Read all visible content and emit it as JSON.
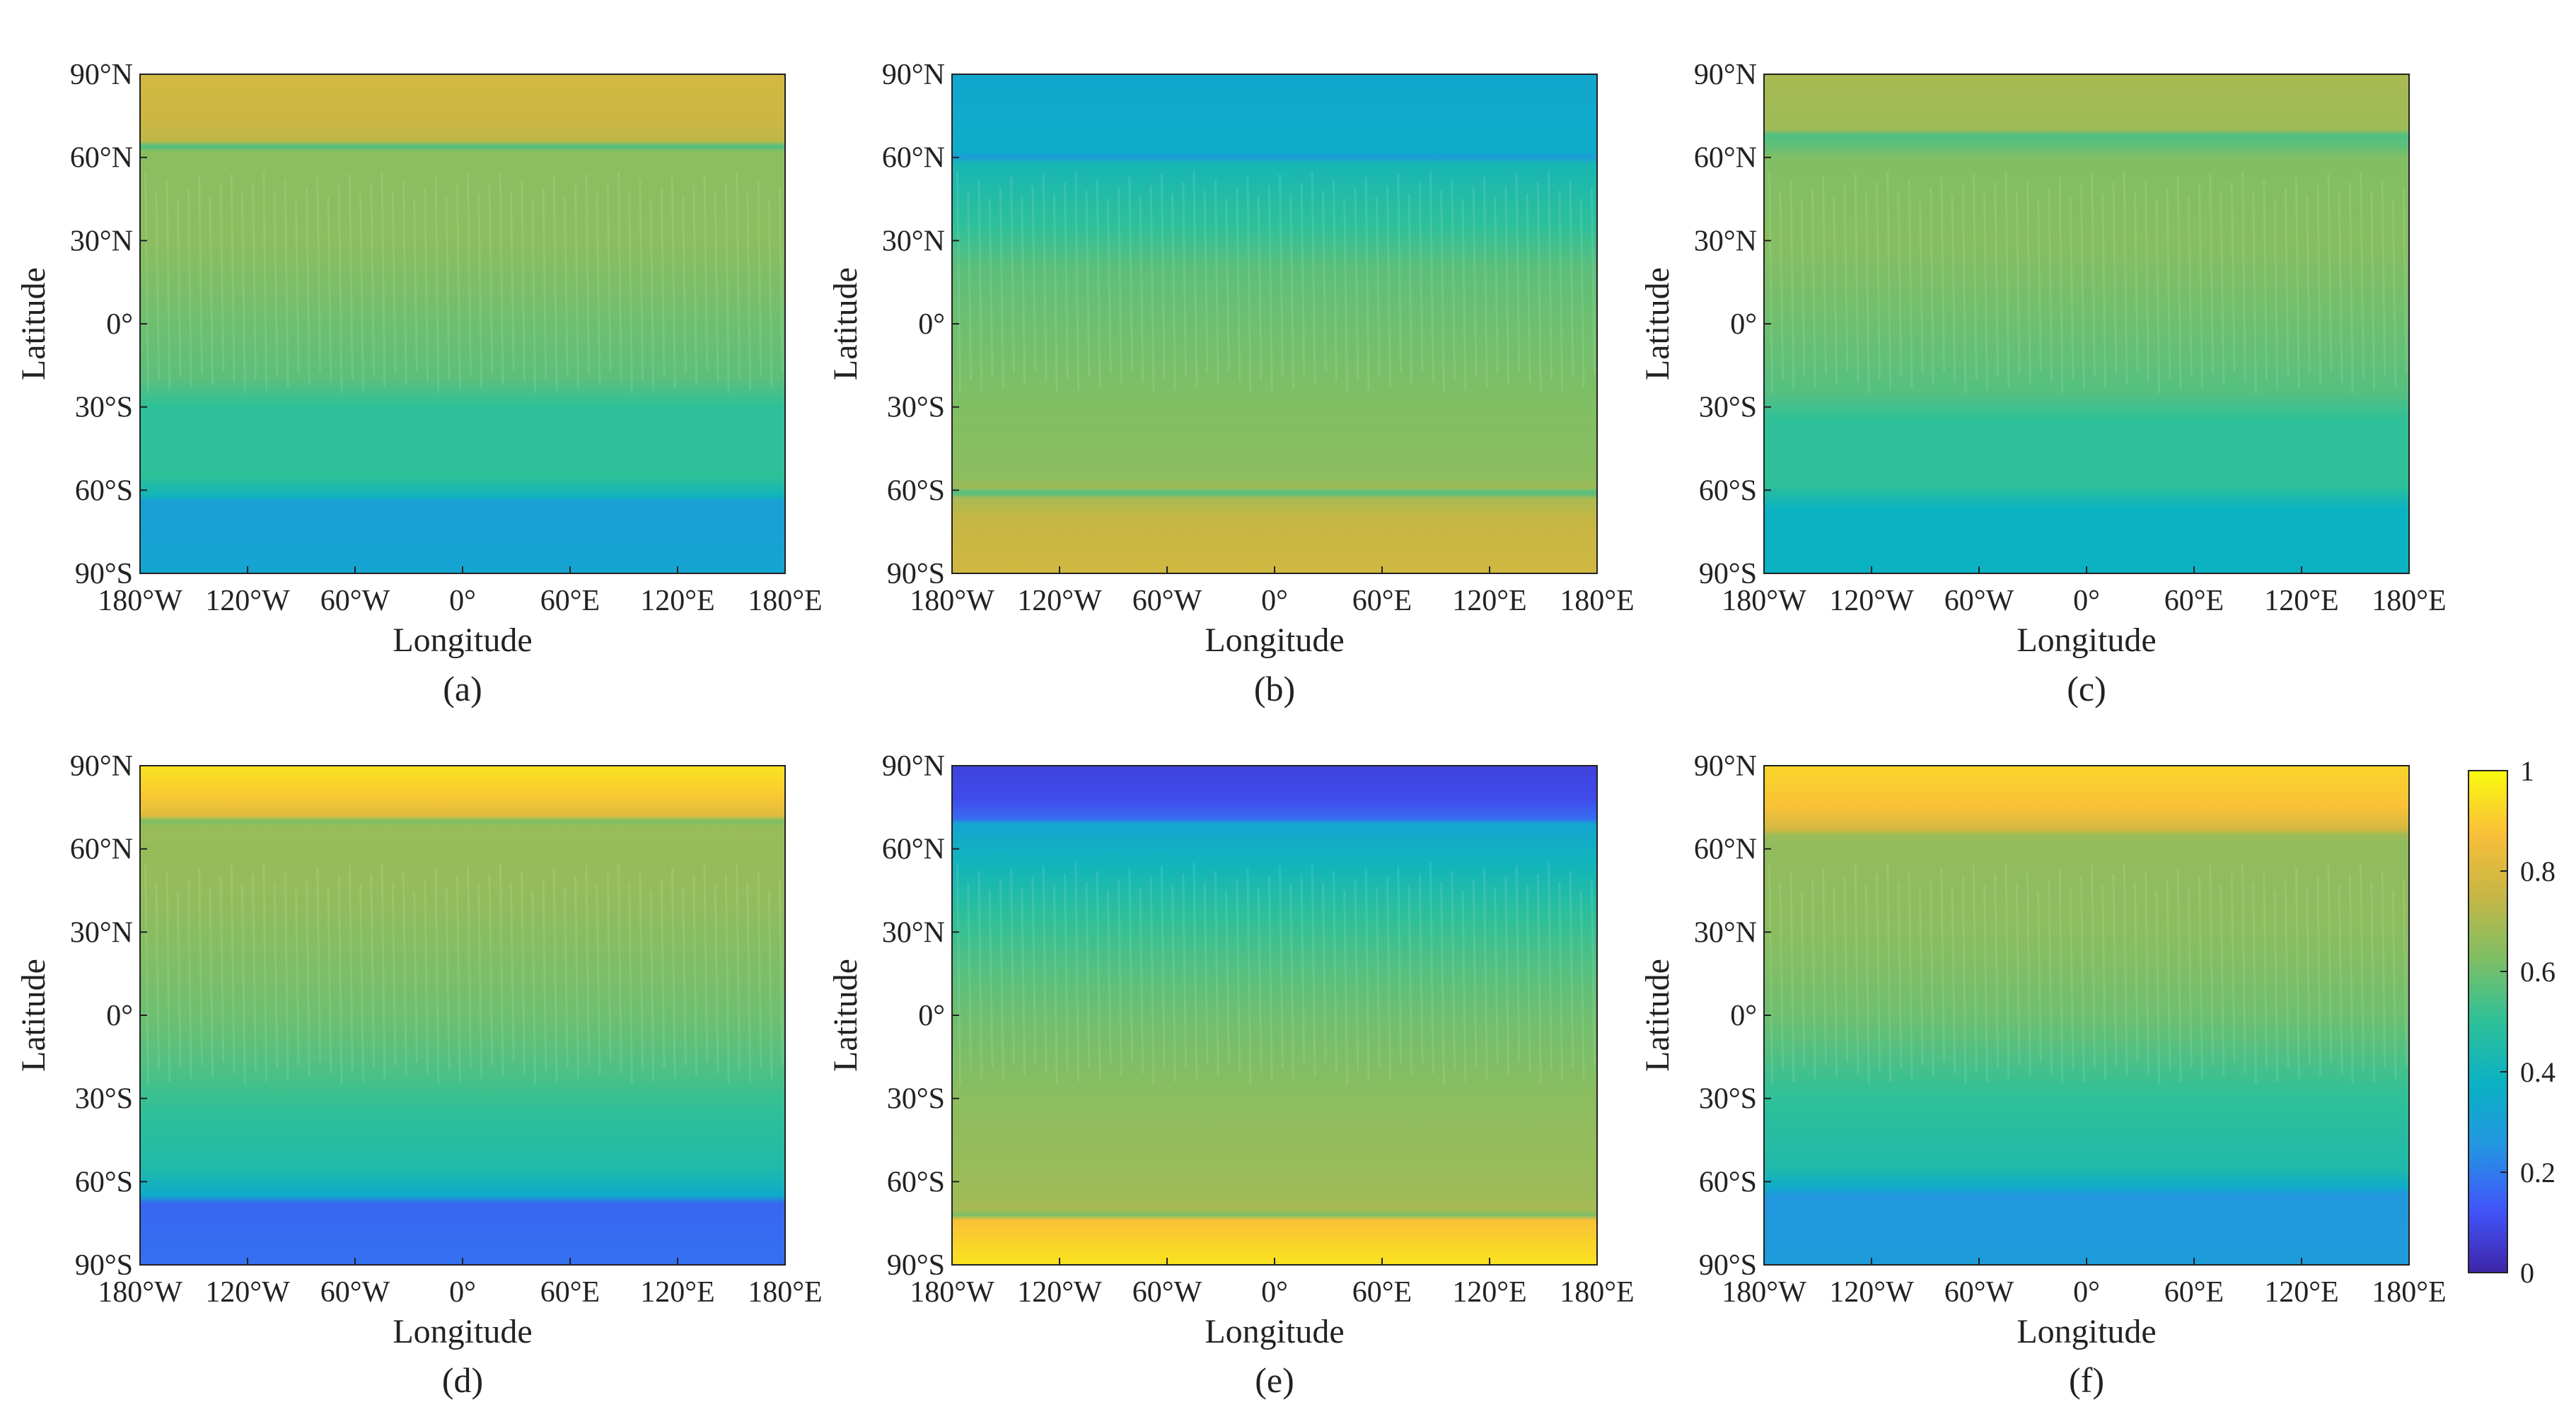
{
  "figure": {
    "colormap": "parula",
    "colormap_stops": [
      "#3e26a8",
      "#4154fa",
      "#2495e1",
      "#0ab1c4",
      "#2ec098",
      "#7ebf65",
      "#c5b645",
      "#f9bf39",
      "#f9fb0e"
    ]
  },
  "chart_data": [
    {
      "type": "heatmap",
      "panel_label": "(a)",
      "xlabel": "Longitude",
      "ylabel": "Latitude",
      "xlim": [
        -180,
        180
      ],
      "ylim": [
        -90,
        90
      ],
      "x_ticks": [
        -180,
        -120,
        -60,
        0,
        60,
        120,
        180
      ],
      "x_tick_labels": [
        "180°W",
        "120°W",
        "60°W",
        "0°",
        "60°E",
        "120°E",
        "180°E"
      ],
      "y_ticks": [
        90,
        60,
        30,
        0,
        -30,
        -60,
        -90
      ],
      "y_tick_labels": [
        "90°N",
        "60°N",
        "30°N",
        "0°",
        "30°S",
        "60°S",
        "90°S"
      ],
      "latitude_profile": [
        [
          90,
          0.78
        ],
        [
          75,
          0.77
        ],
        [
          66,
          0.74
        ],
        [
          64,
          0.55
        ],
        [
          62,
          0.65
        ],
        [
          30,
          0.65
        ],
        [
          0,
          0.6
        ],
        [
          -20,
          0.57
        ],
        [
          -30,
          0.5
        ],
        [
          -55,
          0.5
        ],
        [
          -62,
          0.4
        ],
        [
          -64,
          0.3
        ],
        [
          -90,
          0.32
        ]
      ]
    },
    {
      "type": "heatmap",
      "panel_label": "(b)",
      "xlabel": "Longitude",
      "ylabel": "Latitude",
      "xlim": [
        -180,
        180
      ],
      "ylim": [
        -90,
        90
      ],
      "x_ticks": [
        -180,
        -120,
        -60,
        0,
        60,
        120,
        180
      ],
      "x_tick_labels": [
        "180°W",
        "120°W",
        "60°W",
        "0°",
        "60°E",
        "120°E",
        "180°E"
      ],
      "y_ticks": [
        90,
        60,
        30,
        0,
        -30,
        -60,
        -90
      ],
      "y_tick_labels": [
        "90°N",
        "60°N",
        "30°N",
        "0°",
        "30°S",
        "60°S",
        "90°S"
      ],
      "latitude_profile": [
        [
          90,
          0.33
        ],
        [
          62,
          0.35
        ],
        [
          60,
          0.28
        ],
        [
          58,
          0.42
        ],
        [
          35,
          0.5
        ],
        [
          20,
          0.57
        ],
        [
          0,
          0.6
        ],
        [
          -30,
          0.63
        ],
        [
          -55,
          0.65
        ],
        [
          -59,
          0.68
        ],
        [
          -61,
          0.55
        ],
        [
          -63,
          0.7
        ],
        [
          -70,
          0.75
        ],
        [
          -90,
          0.78
        ]
      ]
    },
    {
      "type": "heatmap",
      "panel_label": "(c)",
      "xlabel": "Longitude",
      "ylabel": "Latitude",
      "xlim": [
        -180,
        180
      ],
      "ylim": [
        -90,
        90
      ],
      "x_ticks": [
        -180,
        -120,
        -60,
        0,
        60,
        120,
        180
      ],
      "x_tick_labels": [
        "180°W",
        "120°W",
        "60°W",
        "0°",
        "60°E",
        "120°E",
        "180°E"
      ],
      "y_ticks": [
        90,
        60,
        30,
        0,
        -30,
        -60,
        -90
      ],
      "y_tick_labels": [
        "90°N",
        "60°N",
        "30°N",
        "0°",
        "30°S",
        "60°S",
        "90°S"
      ],
      "latitude_profile": [
        [
          90,
          0.7
        ],
        [
          70,
          0.68
        ],
        [
          68,
          0.55
        ],
        [
          64,
          0.58
        ],
        [
          60,
          0.63
        ],
        [
          30,
          0.64
        ],
        [
          0,
          0.6
        ],
        [
          -25,
          0.56
        ],
        [
          -35,
          0.5
        ],
        [
          -58,
          0.5
        ],
        [
          -64,
          0.42
        ],
        [
          -67,
          0.38
        ],
        [
          -90,
          0.38
        ]
      ]
    },
    {
      "type": "heatmap",
      "panel_label": "(d)",
      "xlabel": "Longitude",
      "ylabel": "Latitude",
      "xlim": [
        -180,
        180
      ],
      "ylim": [
        -90,
        90
      ],
      "x_ticks": [
        -180,
        -120,
        -60,
        0,
        60,
        120,
        180
      ],
      "x_tick_labels": [
        "180°W",
        "120°W",
        "60°W",
        "0°",
        "60°E",
        "120°E",
        "180°E"
      ],
      "y_ticks": [
        90,
        60,
        30,
        0,
        -30,
        -60,
        -90
      ],
      "y_tick_labels": [
        "90°N",
        "60°N",
        "30°N",
        "0°",
        "30°S",
        "60°S",
        "90°S"
      ],
      "latitude_profile": [
        [
          90,
          0.95
        ],
        [
          80,
          0.9
        ],
        [
          72,
          0.82
        ],
        [
          70,
          0.62
        ],
        [
          68,
          0.67
        ],
        [
          40,
          0.66
        ],
        [
          0,
          0.6
        ],
        [
          -20,
          0.55
        ],
        [
          -35,
          0.5
        ],
        [
          -55,
          0.45
        ],
        [
          -65,
          0.35
        ],
        [
          -68,
          0.16
        ],
        [
          -90,
          0.18
        ]
      ]
    },
    {
      "type": "heatmap",
      "panel_label": "(e)",
      "xlabel": "Longitude",
      "ylabel": "Latitude",
      "xlim": [
        -180,
        180
      ],
      "ylim": [
        -90,
        90
      ],
      "x_ticks": [
        -180,
        -120,
        -60,
        0,
        60,
        120,
        180
      ],
      "x_tick_labels": [
        "180°W",
        "120°W",
        "60°W",
        "0°",
        "60°E",
        "120°E",
        "180°E"
      ],
      "y_ticks": [
        90,
        60,
        30,
        0,
        -30,
        -60,
        -90
      ],
      "y_tick_labels": [
        "90°N",
        "60°N",
        "30°N",
        "0°",
        "30°S",
        "60°S",
        "90°S"
      ],
      "latitude_profile": [
        [
          90,
          0.08
        ],
        [
          78,
          0.1
        ],
        [
          71,
          0.17
        ],
        [
          69,
          0.32
        ],
        [
          55,
          0.4
        ],
        [
          35,
          0.5
        ],
        [
          20,
          0.55
        ],
        [
          0,
          0.6
        ],
        [
          -30,
          0.65
        ],
        [
          -65,
          0.68
        ],
        [
          -70,
          0.7
        ],
        [
          -72,
          0.62
        ],
        [
          -74,
          0.88
        ],
        [
          -90,
          0.95
        ]
      ]
    },
    {
      "type": "heatmap",
      "panel_label": "(f)",
      "xlabel": "Longitude",
      "ylabel": "Latitude",
      "xlim": [
        -180,
        180
      ],
      "ylim": [
        -90,
        90
      ],
      "x_ticks": [
        -180,
        -120,
        -60,
        0,
        60,
        120,
        180
      ],
      "x_tick_labels": [
        "180°W",
        "120°W",
        "60°W",
        "0°",
        "60°E",
        "120°E",
        "180°E"
      ],
      "y_ticks": [
        90,
        60,
        30,
        0,
        -30,
        -60,
        -90
      ],
      "y_tick_labels": [
        "90°N",
        "60°N",
        "30°N",
        "0°",
        "30°S",
        "60°S",
        "90°S"
      ],
      "latitude_profile": [
        [
          90,
          0.92
        ],
        [
          75,
          0.88
        ],
        [
          67,
          0.78
        ],
        [
          65,
          0.68
        ],
        [
          62,
          0.66
        ],
        [
          30,
          0.65
        ],
        [
          0,
          0.6
        ],
        [
          -15,
          0.55
        ],
        [
          -30,
          0.5
        ],
        [
          -55,
          0.45
        ],
        [
          -62,
          0.35
        ],
        [
          -65,
          0.26
        ],
        [
          -90,
          0.28
        ]
      ]
    }
  ],
  "colorbar": {
    "range": [
      0,
      1
    ],
    "ticks": [
      0,
      0.2,
      0.4,
      0.6,
      0.8,
      1
    ],
    "tick_labels": [
      "0",
      "0.2",
      "0.4",
      "0.6",
      "0.8",
      "1"
    ]
  }
}
